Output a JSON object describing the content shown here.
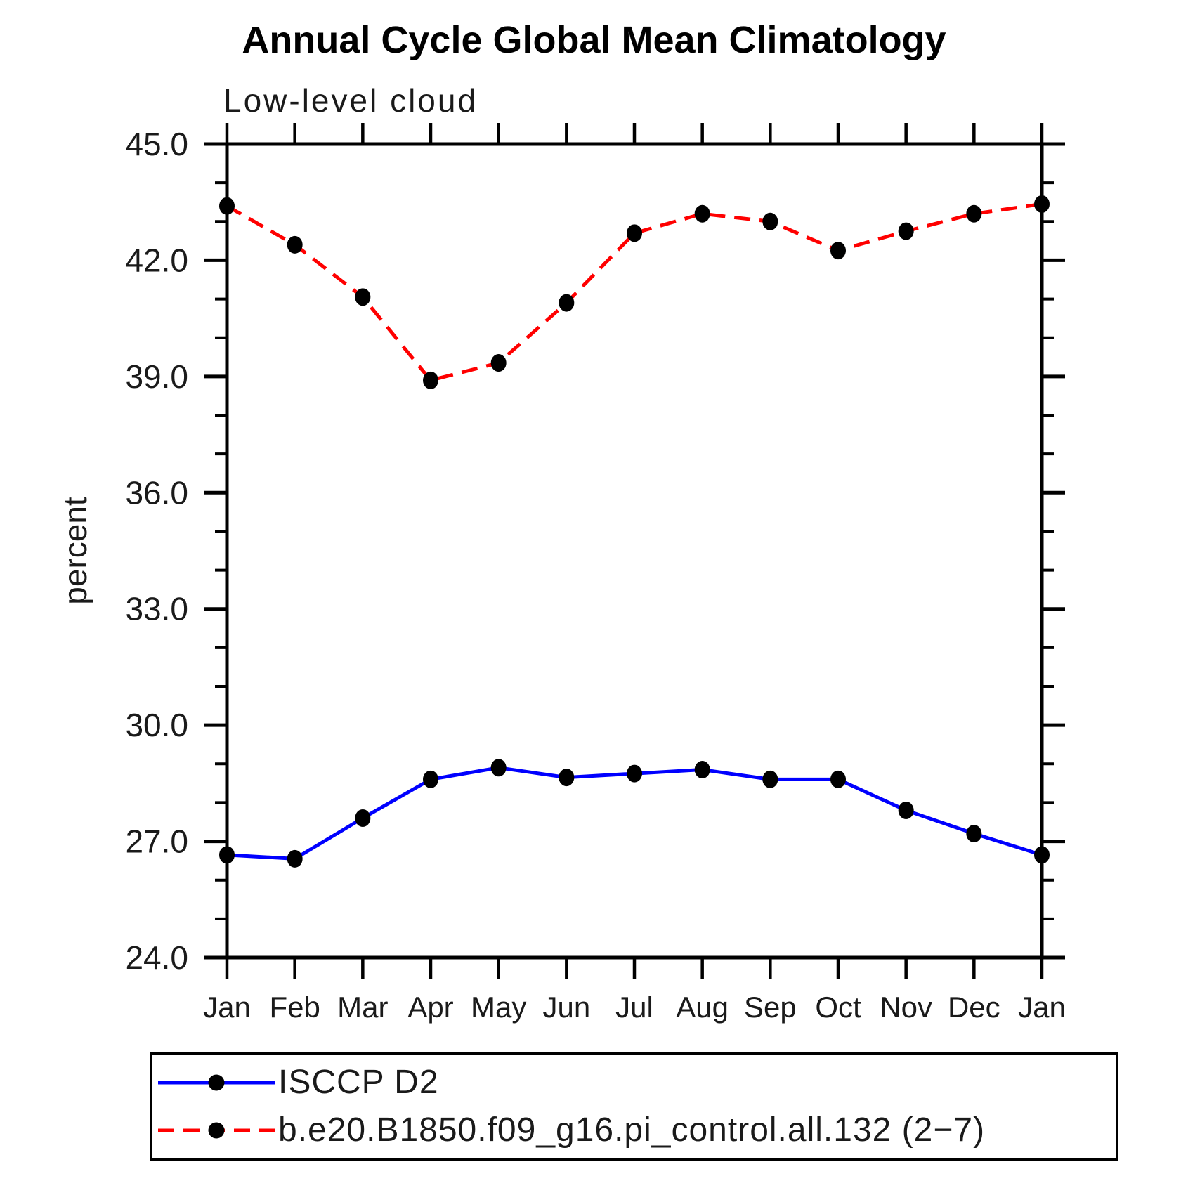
{
  "title": "Annual Cycle Global Mean Climatology",
  "subtitle": "Low-level cloud",
  "chart_data": {
    "type": "line",
    "categories": [
      "Jan",
      "Feb",
      "Mar",
      "Apr",
      "May",
      "Jun",
      "Jul",
      "Aug",
      "Sep",
      "Oct",
      "Nov",
      "Dec",
      "Jan"
    ],
    "xlabel": "",
    "ylabel": "percent",
    "ylim": [
      24.0,
      45.0
    ],
    "ytick_major": [
      24,
      27,
      30,
      33,
      36,
      39,
      42,
      45
    ],
    "ytick_major_labels": [
      "24.0",
      "27.0",
      "30.0",
      "33.0",
      "36.0",
      "39.0",
      "42.0",
      "45.0"
    ],
    "ytick_minor": [
      25,
      26,
      28,
      29,
      31,
      32,
      34,
      35,
      37,
      38,
      40,
      41,
      43,
      44
    ],
    "grid": false,
    "legend_position": "bottom-left-box",
    "marker": {
      "shape": "filled-circle",
      "color": "#000000"
    },
    "axis_color": "#000000",
    "background_color": "#ffffff",
    "series": [
      {
        "name": "ISCCP D2",
        "color": "#0000ff",
        "line_style": "solid",
        "values": [
          26.65,
          26.55,
          27.6,
          28.6,
          28.9,
          28.65,
          28.75,
          28.85,
          28.6,
          28.6,
          27.8,
          27.2,
          26.65
        ]
      },
      {
        "name": "b.e20.B1850.f09_g16.pi_control.all.132 (2−7)",
        "color": "#ff0000",
        "line_style": "dashed",
        "values": [
          43.4,
          42.4,
          41.05,
          38.9,
          39.35,
          40.9,
          42.7,
          43.2,
          43.0,
          42.25,
          42.75,
          43.2,
          43.45
        ]
      }
    ]
  },
  "legend": {
    "entries": [
      {
        "label": "ISCCP D2"
      },
      {
        "label": "b.e20.B1850.f09_g16.pi_control.all.132 (2−7)"
      }
    ]
  }
}
